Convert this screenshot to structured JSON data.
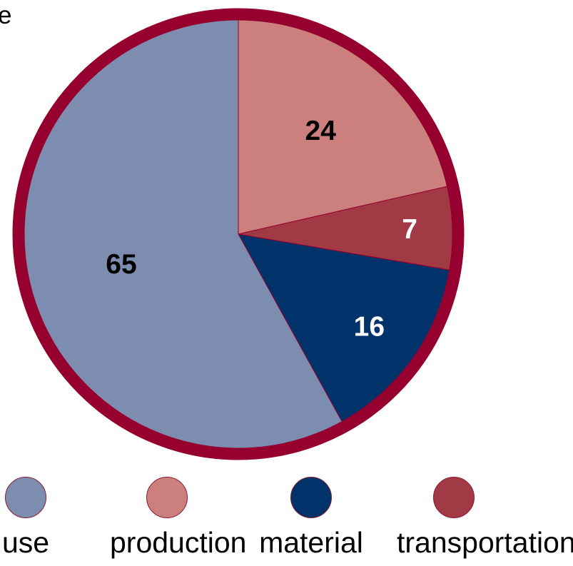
{
  "chart_data": {
    "type": "pie",
    "title": "",
    "categories": [
      "use",
      "production",
      "material",
      "transportation"
    ],
    "values": [
      65,
      24,
      16,
      7
    ],
    "colors": {
      "use": "#7c8daf",
      "production": "#cb807e",
      "material": "#00336a",
      "transportation": "#a23a46",
      "border": "#96002f"
    },
    "slice_order_clockwise_from_top": [
      "production",
      "transportation",
      "material",
      "use"
    ],
    "legend_position": "bottom",
    "edge_text": "e"
  }
}
